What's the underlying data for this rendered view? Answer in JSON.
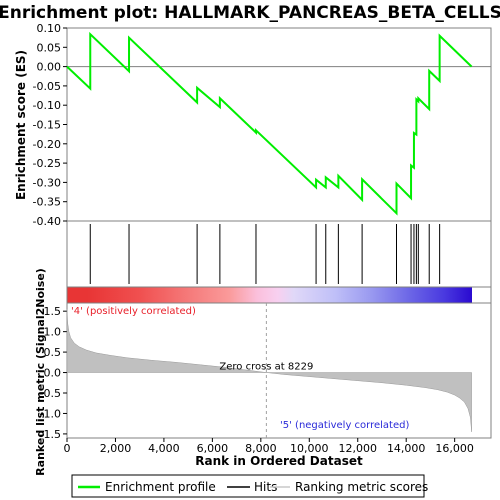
{
  "chart_data": {
    "type": "line",
    "title": "Enrichment plot: HALLMARK_PANCREAS_BETA_CELLS",
    "xlabel": "Rank in Ordered Dataset",
    "es_ylabel": "Enrichment score (ES)",
    "metric_ylabel": "Ranked list metric (Signal2Noise)",
    "xlim": [
      0,
      17500
    ],
    "x_ticks": [
      0,
      2000,
      4000,
      6000,
      8000,
      10000,
      12000,
      14000,
      16000
    ],
    "x_tick_labels": [
      "0",
      "2,000",
      "4,000",
      "6,000",
      "8,000",
      "10,000",
      "12,000",
      "14,000",
      "16,000"
    ],
    "es_ylim": [
      -0.4,
      0.1
    ],
    "es_ticks": [
      0.1,
      0.05,
      0.0,
      -0.05,
      -0.1,
      -0.15,
      -0.2,
      -0.25,
      -0.3,
      -0.35,
      -0.4
    ],
    "es_tick_labels": [
      "0.10",
      "0.05",
      "0.00",
      "-0.05",
      "-0.10",
      "-0.15",
      "-0.20",
      "-0.25",
      "-0.30",
      "-0.35",
      "-0.40"
    ],
    "metric_ylim": [
      -1.6,
      1.7
    ],
    "metric_ticks": [
      1.5,
      1.0,
      0.5,
      0.0,
      -0.5,
      -1.0,
      -1.5
    ],
    "metric_tick_labels": [
      "1.5",
      "1.0",
      "0.5",
      "0.0",
      "-0.5",
      "-1.0",
      "-1.5"
    ],
    "n_genes": 16700,
    "zero_cross_x": 8229,
    "zero_cross_label": "Zero cross at 8229",
    "pos_label": "'4' (positively correlated)",
    "neg_label": "'5' (negatively correlated)",
    "hits": [
      960,
      2560,
      5370,
      6310,
      7800,
      10280,
      10680,
      11200,
      12180,
      13600,
      14200,
      14320,
      14420,
      14500,
      14950,
      15380
    ],
    "enrichment_profile": {
      "x": [
        0,
        960,
        960,
        2560,
        2560,
        5370,
        5370,
        6310,
        6310,
        7800,
        7800,
        10280,
        10280,
        10680,
        10680,
        11200,
        11200,
        12180,
        12180,
        13600,
        13600,
        14200,
        14200,
        14320,
        14320,
        14420,
        14420,
        14500,
        14500,
        14950,
        14950,
        15380,
        15380,
        16700
      ],
      "y": [
        0.0,
        -0.057,
        0.084,
        -0.012,
        0.075,
        -0.093,
        -0.055,
        -0.105,
        -0.082,
        -0.171,
        -0.165,
        -0.313,
        -0.293,
        -0.313,
        -0.287,
        -0.313,
        -0.283,
        -0.345,
        -0.292,
        -0.38,
        -0.303,
        -0.341,
        -0.256,
        -0.262,
        -0.172,
        -0.176,
        -0.085,
        -0.09,
        -0.082,
        -0.11,
        -0.011,
        -0.037,
        0.08,
        0.0
      ]
    },
    "metric_curve": {
      "x": [
        0,
        30,
        80,
        150,
        300,
        500,
        800,
        1200,
        1800,
        2500,
        3500,
        4500,
        5500,
        6500,
        7300,
        8229,
        9000,
        10000,
        11000,
        12000,
        13000,
        14000,
        14800,
        15300,
        15700,
        16000,
        16200,
        16400,
        16550,
        16650,
        16700
      ],
      "y": [
        1.55,
        1.2,
        1.0,
        0.85,
        0.72,
        0.63,
        0.55,
        0.48,
        0.42,
        0.36,
        0.3,
        0.25,
        0.19,
        0.13,
        0.07,
        0.0,
        -0.05,
        -0.1,
        -0.15,
        -0.2,
        -0.25,
        -0.31,
        -0.37,
        -0.42,
        -0.48,
        -0.55,
        -0.62,
        -0.72,
        -0.88,
        -1.1,
        -1.45
      ]
    },
    "legend": [
      {
        "label": "Enrichment profile",
        "color": "#00ee00"
      },
      {
        "label": "Hits",
        "color": "#000000"
      },
      {
        "label": "Ranking metric scores",
        "color": "#c8c8c8"
      }
    ],
    "colors": {
      "profile": "#00ee00",
      "hits": "#000000",
      "metric_fill": "#c0c0c0",
      "zero_line": "#808080"
    }
  }
}
